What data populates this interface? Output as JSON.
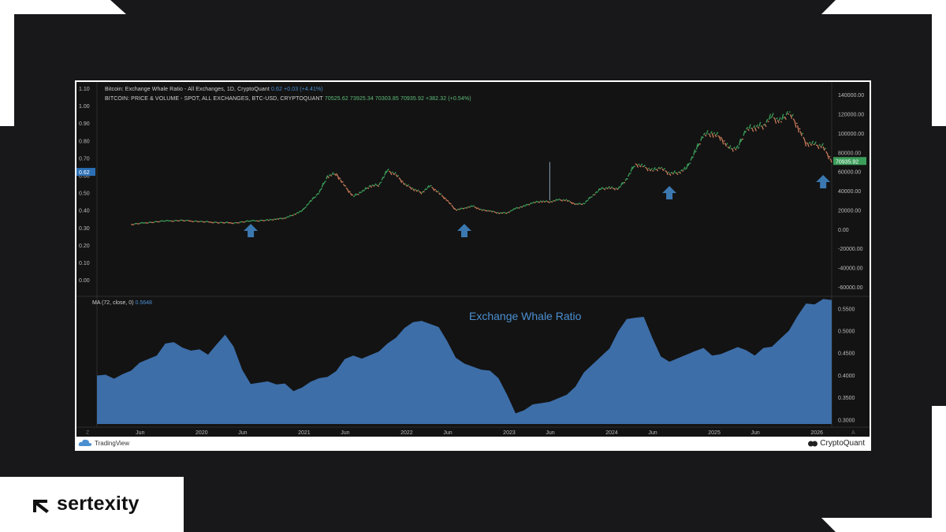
{
  "chart_data": [
    {
      "type": "line",
      "legend_lines": [
        {
          "prefix": "Bitcoin: Exchange Whale Ratio - All Exchanges, 1D, CryptoQuant",
          "value": "0.62",
          "change": "+0.03 (+4.41%)"
        },
        {
          "prefix": "BITCOIN: PRICE & VOLUME - SPOT, ALL EXCHANGES, BTC-USD, CRYPTOQUANT",
          "ohlc": "70525.62  73925.34  70303.85  70935.92",
          "change": "+382.32 (+0.54%)"
        }
      ],
      "left_axis": {
        "ticks": [
          "1.10",
          "1.00",
          "0.90",
          "0.80",
          "0.70",
          "0.60",
          "0.50",
          "0.40",
          "0.30",
          "0.20",
          "0.10",
          "0.00"
        ],
        "range": [
          0,
          1.1
        ]
      },
      "left_axis_marker": "0.62",
      "right_axis": {
        "ticks": [
          "140000.00",
          "120000.00",
          "100000.00",
          "80000.00",
          "60000.00",
          "40000.00",
          "20000.00",
          "0.00",
          "-20000.00",
          "-40000.00",
          "-60000.00"
        ],
        "range": [
          -65000,
          150000
        ]
      },
      "price_marker": "70935.92",
      "series": [
        {
          "x": [
            "2019-05",
            "2019-07",
            "2019-09",
            "2019-11",
            "2020-01",
            "2020-03",
            "2020-05",
            "2020-07",
            "2020-09",
            "2020-10",
            "2020-11",
            "2020-12",
            "2021-01",
            "2021-02",
            "2021-03",
            "2021-04",
            "2021-05",
            "2021-06",
            "2021-07",
            "2021-08",
            "2021-09",
            "2021-10",
            "2021-11",
            "2021-12",
            "2022-01",
            "2022-02",
            "2022-03",
            "2022-04",
            "2022-05",
            "2022-06",
            "2022-07",
            "2022-08",
            "2022-09",
            "2022-10",
            "2022-11",
            "2022-12",
            "2023-01",
            "2023-02",
            "2023-03",
            "2023-04",
            "2023-05",
            "2023-06",
            "2023-07",
            "2023-08",
            "2023-09",
            "2023-10",
            "2023-11",
            "2023-12",
            "2024-01",
            "2024-02",
            "2024-03",
            "2024-04",
            "2024-05",
            "2024-06",
            "2024-07",
            "2024-08",
            "2024-09",
            "2024-10",
            "2024-11",
            "2024-12",
            "2025-01",
            "2025-02",
            "2025-03",
            "2025-04",
            "2025-05",
            "2025-06",
            "2025-07",
            "2025-08",
            "2025-09",
            "2025-10",
            "2025-11",
            "2025-12",
            "2026-01",
            "2026-02",
            "2026-03"
          ],
          "values": [
            5000,
            7000,
            8500,
            9000,
            8000,
            7000,
            6500,
            8500,
            9300,
            10500,
            11500,
            15000,
            19000,
            29000,
            38000,
            55000,
            58000,
            45000,
            34000,
            39000,
            45000,
            46000,
            61000,
            57000,
            47000,
            42000,
            38000,
            45000,
            38000,
            30000,
            20000,
            22000,
            24000,
            20000,
            19000,
            16800,
            17000,
            21500,
            24000,
            27500,
            29000,
            28500,
            30500,
            30000,
            26000,
            26500,
            35000,
            42000,
            43000,
            42000,
            52000,
            68000,
            65000,
            61000,
            64000,
            58000,
            59000,
            63000,
            80000,
            98000,
            100000,
            96000,
            84000,
            84000,
            104000,
            106000,
            108000,
            117000,
            112000,
            122000,
            108000,
            90000,
            88000,
            86000,
            71000
          ]
        }
      ],
      "annotations": [
        {
          "type": "arrow-up",
          "x": "2020-07"
        },
        {
          "type": "arrow-up",
          "x": "2022-08"
        },
        {
          "type": "arrow-up",
          "x": "2024-08"
        },
        {
          "type": "arrow-up",
          "x": "2026-02"
        }
      ]
    },
    {
      "type": "area",
      "label": "MA (72, close, 0)",
      "label_value": "0.5648",
      "title": "Exchange Whale Ratio",
      "y_ticks": [
        "0.5500",
        "0.5000",
        "0.4500",
        "0.4000",
        "0.3500",
        "0.3000"
      ],
      "ylim": [
        0.29,
        0.57
      ],
      "x_ticks": [
        "Jun",
        "2020",
        "Jun",
        "2021",
        "Jun",
        "2022",
        "Jun",
        "2023",
        "Jun",
        "2024",
        "Jun",
        "2025",
        "Jun",
        "2026"
      ],
      "series": [
        {
          "x": [
            "2019-01",
            "2019-02",
            "2019-03",
            "2019-04",
            "2019-05",
            "2019-06",
            "2019-07",
            "2019-08",
            "2019-09",
            "2019-10",
            "2019-11",
            "2019-12",
            "2020-01",
            "2020-02",
            "2020-03",
            "2020-04",
            "2020-05",
            "2020-06",
            "2020-07",
            "2020-08",
            "2020-09",
            "2020-10",
            "2020-11",
            "2020-12",
            "2021-01",
            "2021-02",
            "2021-03",
            "2021-04",
            "2021-05",
            "2021-06",
            "2021-07",
            "2021-08",
            "2021-09",
            "2021-10",
            "2021-11",
            "2021-12",
            "2022-01",
            "2022-02",
            "2022-03",
            "2022-04",
            "2022-05",
            "2022-06",
            "2022-07",
            "2022-08",
            "2022-09",
            "2022-10",
            "2022-11",
            "2022-12",
            "2023-01",
            "2023-02",
            "2023-03",
            "2023-04",
            "2023-05",
            "2023-06",
            "2023-07",
            "2023-08",
            "2023-09",
            "2023-10",
            "2023-11",
            "2023-12",
            "2024-01",
            "2024-02",
            "2024-03",
            "2024-04",
            "2024-05",
            "2024-06",
            "2024-07",
            "2024-08",
            "2024-09",
            "2024-10",
            "2024-11",
            "2024-12",
            "2025-01",
            "2025-02",
            "2025-03",
            "2025-04",
            "2025-05",
            "2025-06",
            "2025-07",
            "2025-08",
            "2025-09",
            "2025-10",
            "2025-11",
            "2025-12",
            "2026-01",
            "2026-02",
            "2026-03"
          ],
          "values": [
            0.405,
            0.395,
            0.388,
            0.4,
            0.41,
            0.43,
            0.44,
            0.45,
            0.465,
            0.47,
            0.46,
            0.455,
            0.46,
            0.45,
            0.475,
            0.485,
            0.46,
            0.41,
            0.38,
            0.385,
            0.39,
            0.385,
            0.375,
            0.36,
            0.37,
            0.385,
            0.395,
            0.4,
            0.415,
            0.43,
            0.44,
            0.435,
            0.445,
            0.455,
            0.475,
            0.49,
            0.5,
            0.515,
            0.52,
            0.515,
            0.51,
            0.48,
            0.445,
            0.42,
            0.415,
            0.41,
            0.41,
            0.395,
            0.36,
            0.32,
            0.315,
            0.33,
            0.335,
            0.34,
            0.35,
            0.36,
            0.38,
            0.4,
            0.42,
            0.44,
            0.46,
            0.5,
            0.53,
            0.535,
            0.525,
            0.48,
            0.44,
            0.43,
            0.44,
            0.45,
            0.46,
            0.455,
            0.44,
            0.445,
            0.455,
            0.465,
            0.46,
            0.45,
            0.455,
            0.46,
            0.48,
            0.5,
            0.535,
            0.565,
            0.565,
            0.565,
            0.565
          ]
        }
      ]
    }
  ],
  "header": {
    "tradingview_label": "TradingView",
    "cryptoquant_label": "CryptoQuant"
  },
  "brand": {
    "name": "sertexity"
  },
  "colors": {
    "background": "#18181b",
    "chart_bg": "#131313",
    "accent_blue": "#4b8fd1",
    "area_fill": "#3d6ea8",
    "up_green": "#3b9e5a",
    "down_red": "#c97a5a",
    "arrow": "#3b78b0"
  }
}
